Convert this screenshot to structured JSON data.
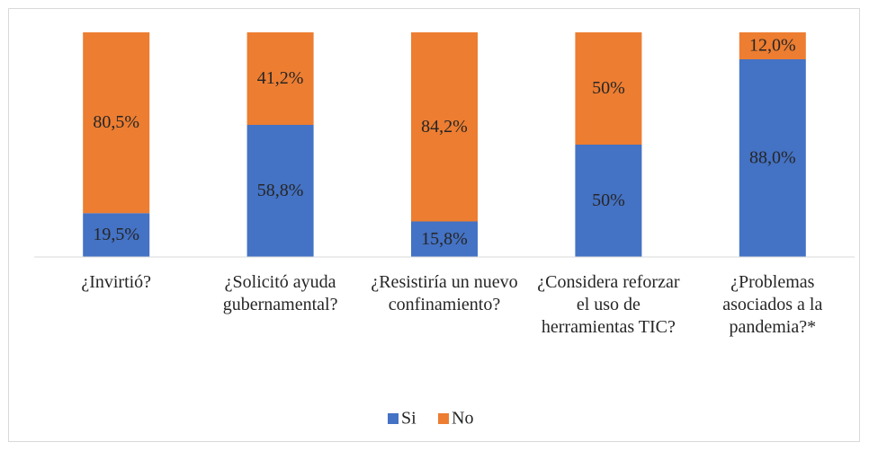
{
  "chart_data": {
    "type": "stacked_bar",
    "categories": [
      "¿Invirtió?",
      "¿Solicitó ayuda gubernamental?",
      "¿Resistiría un nuevo confinamiento?",
      "¿Considera reforzar el uso de herramientas TIC?",
      "¿Problemas asociados a la pandemia?*"
    ],
    "series": [
      {
        "name": "Si",
        "color": "#4472c4",
        "values": [
          19.5,
          58.8,
          15.8,
          50,
          88.0
        ],
        "value_labels": [
          "19,5%",
          "58,8%",
          "15,8%",
          "50%",
          "88,0%"
        ]
      },
      {
        "name": "No",
        "color": "#ed7d31",
        "values": [
          80.5,
          41.2,
          84.2,
          50,
          12.0
        ],
        "value_labels": [
          "80,5%",
          "41,2%",
          "84,2%",
          "50%",
          "12,0%"
        ]
      }
    ],
    "legend": "bottom"
  }
}
